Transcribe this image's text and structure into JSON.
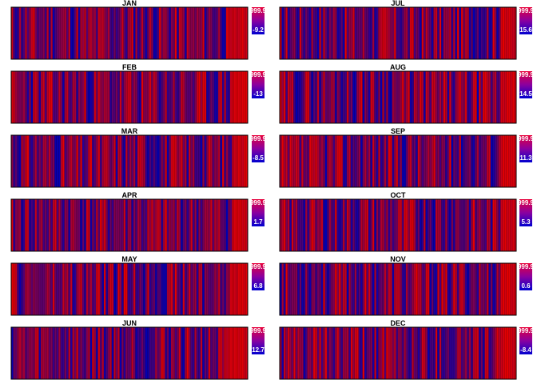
{
  "chart_data": {
    "type": "heatmap",
    "description_colors": {
      "low": "#0000b4",
      "high": "#e60000",
      "frame": "#000000"
    },
    "panels": [
      {
        "title": "JAN",
        "max_label": "999.9",
        "min_label": "-9.2",
        "seed": 11
      },
      {
        "title": "JUL",
        "max_label": "999.9",
        "min_label": "15.6",
        "seed": 17
      },
      {
        "title": "FEB",
        "max_label": "999.9",
        "min_label": "-13",
        "seed": 23
      },
      {
        "title": "AUG",
        "max_label": "999.9",
        "min_label": "14.5",
        "seed": 29
      },
      {
        "title": "MAR",
        "max_label": "999.9",
        "min_label": "-8.5",
        "seed": 31
      },
      {
        "title": "SEP",
        "max_label": "999.9",
        "min_label": "11.3",
        "seed": 37
      },
      {
        "title": "APR",
        "max_label": "999.9",
        "min_label": "1.7",
        "seed": 41
      },
      {
        "title": "OCT",
        "max_label": "999.9",
        "min_label": "5.3",
        "seed": 43
      },
      {
        "title": "MAY",
        "max_label": "999.9",
        "min_label": "6.8",
        "seed": 47
      },
      {
        "title": "NOV",
        "max_label": "999.9",
        "min_label": "0.6",
        "seed": 53
      },
      {
        "title": "JUN",
        "max_label": "999.9",
        "min_label": "12.7",
        "seed": 59
      },
      {
        "title": "DEC",
        "max_label": "999.9",
        "min_label": "-8.4",
        "seed": 61
      }
    ]
  }
}
